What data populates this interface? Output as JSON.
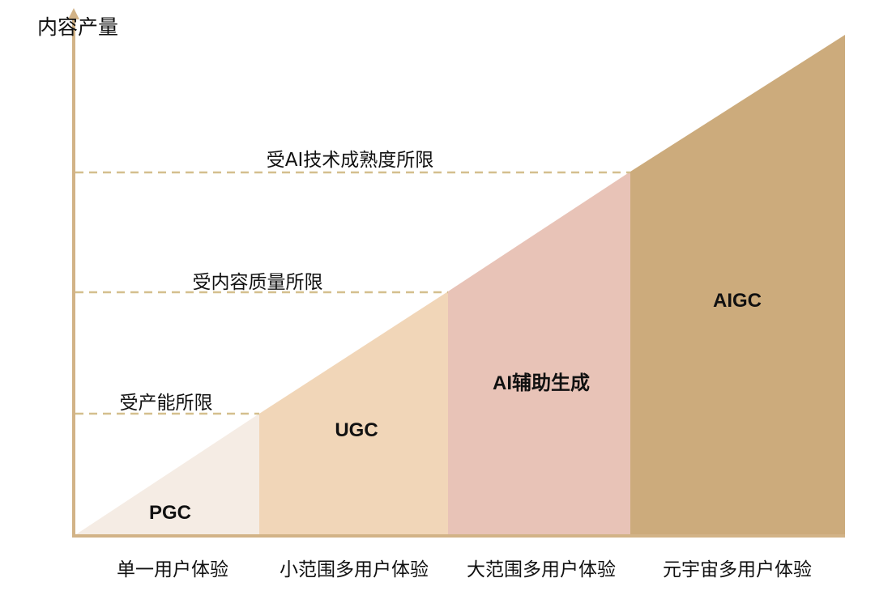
{
  "y_axis_label": "内容产量",
  "limits": [
    "受产能所限",
    "受内容质量所限",
    "受AI技术成熟度所限"
  ],
  "zones": [
    "PGC",
    "UGC",
    "AI辅助生成",
    "AIGC"
  ],
  "categories": [
    "单一用户体验",
    "小范围多用户体验",
    "大范围多用户体验",
    "元宇宙多用户体验"
  ],
  "colors": {
    "axis": "#d2b387",
    "dashed": "#d4bf8e",
    "pgc": "#f5ece4",
    "ugc": "#f1d6b8",
    "ai_assisted": "#e8c3b7",
    "aigc": "#ccab7c"
  }
}
